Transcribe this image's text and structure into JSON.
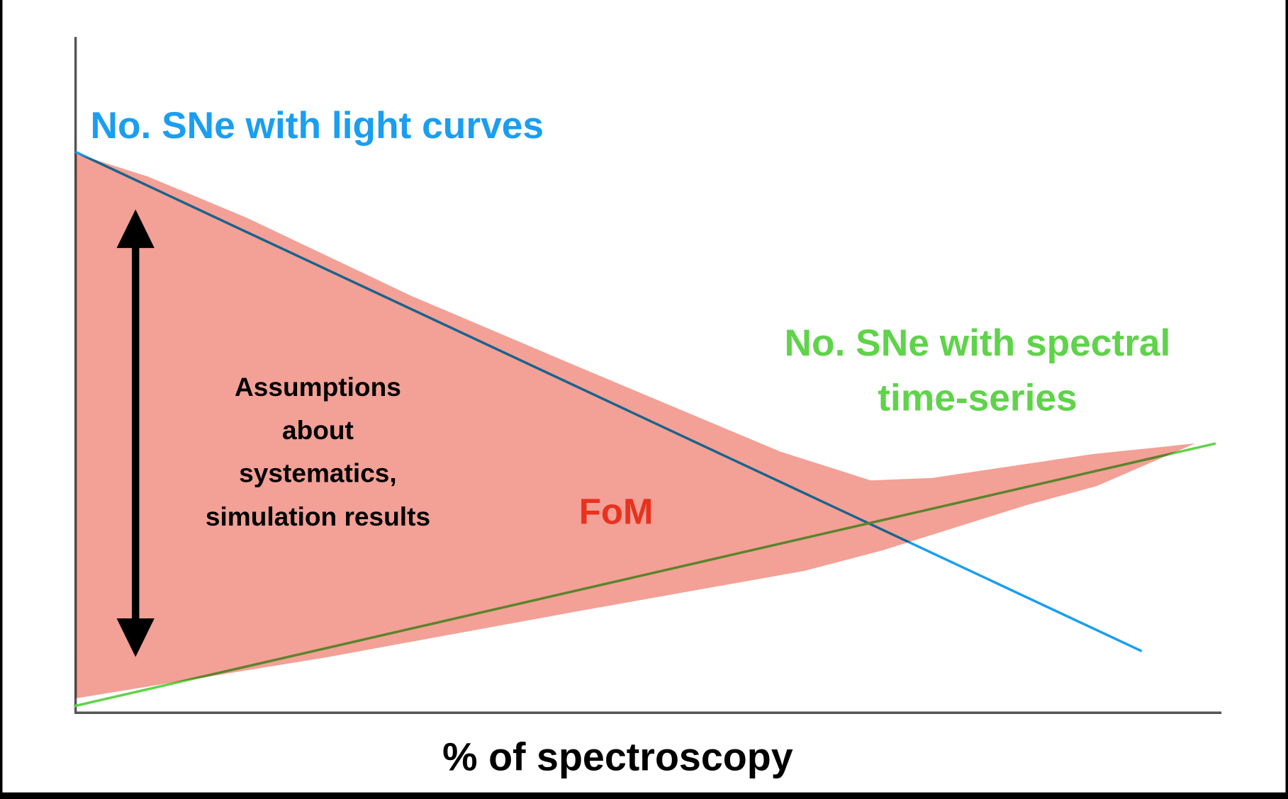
{
  "light_curve_label": "No. SNe with light curves",
  "spectral_label": [
    "No. SNe with spectral",
    "time-series"
  ],
  "assumptions_label": [
    "Assumptions",
    "about",
    "systematics,",
    "simulation results"
  ],
  "fom_label": "FoM",
  "x_axis_label": "% of spectroscopy"
}
